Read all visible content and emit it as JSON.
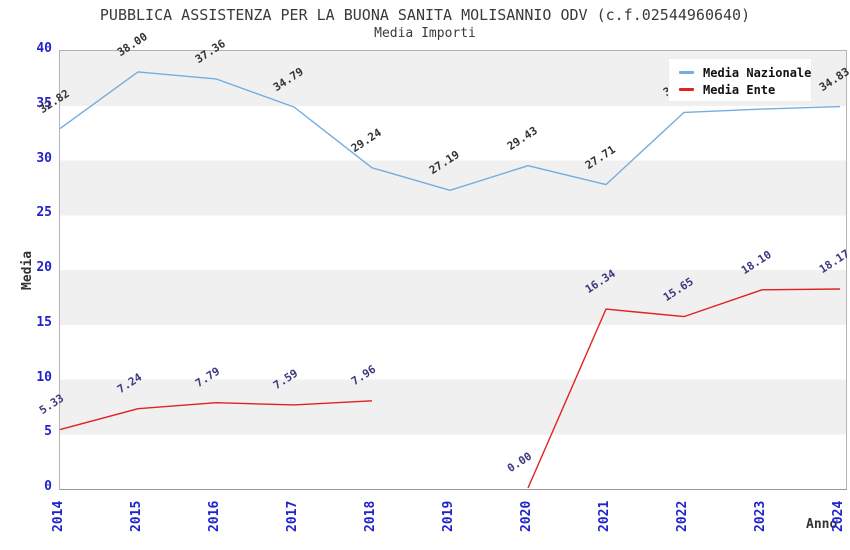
{
  "title": "PUBBLICA ASSISTENZA PER LA BUONA SANITA MOLISANNIO ODV (c.f.02544960640)",
  "subtitle": "Media Importi",
  "axes": {
    "y_label": "Media",
    "x_label": "Anno",
    "y_ticks": [
      "40",
      "35",
      "30",
      "25",
      "20",
      "15",
      "10",
      "5",
      "0"
    ],
    "x_ticks": [
      "2014",
      "2015",
      "2016",
      "2017",
      "2018",
      "2019",
      "2020",
      "2021",
      "2022",
      "2023",
      "2024"
    ]
  },
  "legend": [
    {
      "label": "Media Nazionale",
      "color": "#74ade0"
    },
    {
      "label": "Media Ente",
      "color": "#e02222"
    }
  ],
  "colors": {
    "tick_text": "#2222cc",
    "title_text": "#3a3a3a",
    "band_gray": "#f0f0f0",
    "plot_border": "#b3b3b3",
    "nazionale_line": "#74ade0",
    "ente_line": "#e02222",
    "nazionale_label_text": "#333333",
    "ente_label_text": "#3a3a80"
  },
  "chart_data": {
    "type": "line",
    "title": "Media Importi",
    "xlabel": "Anno",
    "ylabel": "Media",
    "x": [
      2014,
      2015,
      2016,
      2017,
      2018,
      2019,
      2020,
      2021,
      2022,
      2023,
      2024
    ],
    "ylim": [
      0,
      40
    ],
    "grid": "horizontal gray/white bands every 5 units",
    "legend_position": "top-right",
    "series": [
      {
        "name": "Media Nazionale",
        "color": "#74ade0",
        "label_color": "#333333",
        "values": [
          32.82,
          38.0,
          37.36,
          34.79,
          29.24,
          27.19,
          29.43,
          27.71,
          34.3,
          34.6,
          34.83
        ],
        "labels": [
          "32.82",
          "38.00",
          "37.36",
          "34.79",
          "29.24",
          "27.19",
          "29.43",
          "27.71",
          "34.30",
          "34.60",
          "34.83"
        ]
      },
      {
        "name": "Media Ente",
        "color": "#e02222",
        "label_color": "#3a3a80",
        "values": [
          5.33,
          7.24,
          7.79,
          7.59,
          7.96,
          null,
          0.0,
          16.34,
          15.65,
          18.1,
          18.17
        ],
        "labels": [
          "5.33",
          "7.24",
          "7.79",
          "7.59",
          "7.96",
          "",
          "0.00",
          "16.34",
          "15.65",
          "18.10",
          "18.17"
        ]
      }
    ]
  }
}
